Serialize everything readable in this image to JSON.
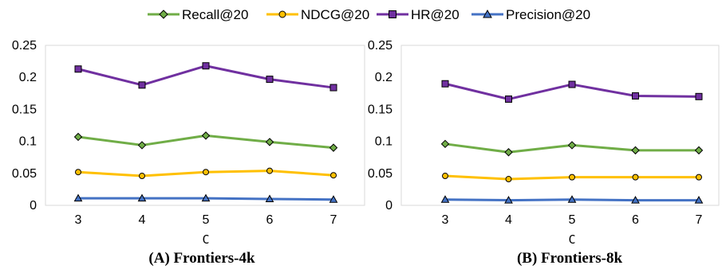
{
  "legend": [
    {
      "name": "Recall@20",
      "color": "#70AD47",
      "marker": "diamond"
    },
    {
      "name": "NDCG@20",
      "color": "#FFC000",
      "marker": "circle"
    },
    {
      "name": "HR@20",
      "color": "#7030A0",
      "marker": "square"
    },
    {
      "name": "Precision@20",
      "color": "#4472C4",
      "marker": "triangle"
    }
  ],
  "chart_data": [
    {
      "type": "line",
      "caption": "(A) Frontiers-4k",
      "xlabel": "C",
      "ylabel": "",
      "categories": [
        "3",
        "4",
        "5",
        "6",
        "7"
      ],
      "ylim": [
        0,
        0.25
      ],
      "yticks": [
        "0",
        "0.05",
        "0.1",
        "0.15",
        "0.2",
        "0.25"
      ],
      "grid": false,
      "legend_position": "top",
      "series": [
        {
          "name": "Recall@20",
          "values": [
            0.107,
            0.094,
            0.109,
            0.099,
            0.09
          ]
        },
        {
          "name": "NDCG@20",
          "values": [
            0.052,
            0.046,
            0.052,
            0.054,
            0.047
          ]
        },
        {
          "name": "HR@20",
          "values": [
            0.213,
            0.188,
            0.218,
            0.197,
            0.184
          ]
        },
        {
          "name": "Precision@20",
          "values": [
            0.011,
            0.011,
            0.011,
            0.01,
            0.009
          ]
        }
      ]
    },
    {
      "type": "line",
      "caption": "(B) Frontiers-8k",
      "xlabel": "C",
      "ylabel": "",
      "categories": [
        "3",
        "4",
        "5",
        "6",
        "7"
      ],
      "ylim": [
        0,
        0.25
      ],
      "yticks": [
        "0",
        "0.05",
        "0.1",
        "0.15",
        "0.2",
        "0.25"
      ],
      "grid": false,
      "legend_position": "top",
      "series": [
        {
          "name": "Recall@20",
          "values": [
            0.096,
            0.083,
            0.094,
            0.086,
            0.086
          ]
        },
        {
          "name": "NDCG@20",
          "values": [
            0.046,
            0.041,
            0.044,
            0.044,
            0.044
          ]
        },
        {
          "name": "HR@20",
          "values": [
            0.19,
            0.166,
            0.189,
            0.171,
            0.17
          ]
        },
        {
          "name": "Precision@20",
          "values": [
            0.009,
            0.008,
            0.009,
            0.008,
            0.008
          ]
        }
      ]
    }
  ]
}
